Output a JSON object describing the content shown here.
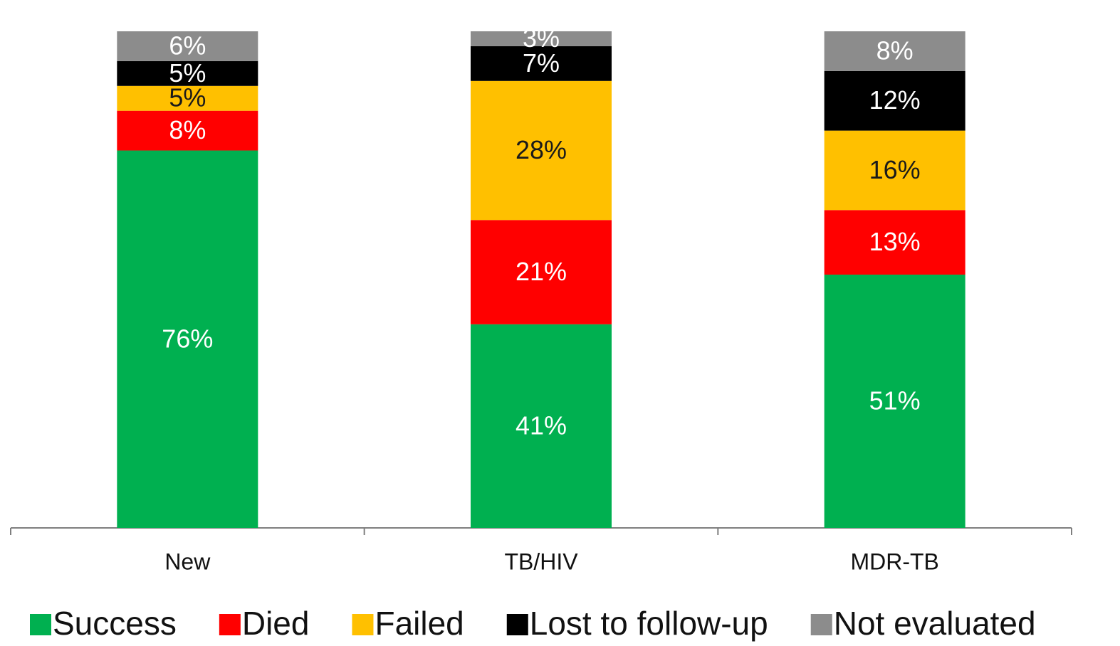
{
  "chart_data": {
    "type": "stacked_bar",
    "categories": [
      "New",
      "TB/HIV",
      "MDR-TB"
    ],
    "series": [
      {
        "name": "Success",
        "color": "#00b050",
        "values": [
          76,
          41,
          51
        ],
        "value_labels": [
          "76%",
          "41%",
          "51%"
        ]
      },
      {
        "name": "Died",
        "color": "#ff0000",
        "values": [
          8,
          21,
          13
        ],
        "value_labels": [
          "8%",
          "21%",
          "13%"
        ]
      },
      {
        "name": "Failed",
        "color": "#ffc000",
        "values": [
          5,
          28,
          16
        ],
        "value_labels": [
          "5%",
          "28%",
          "16%"
        ]
      },
      {
        "name": "Lost to follow-up",
        "color": "#000000",
        "values": [
          5,
          7,
          12
        ],
        "value_labels": [
          "5%",
          "7%",
          "12%"
        ]
      },
      {
        "name": "Not evaluated",
        "color": "#8c8c8c",
        "values": [
          6,
          3,
          8
        ],
        "value_labels": [
          "6%",
          "3%",
          "8%"
        ]
      }
    ],
    "legend": "bottom"
  }
}
